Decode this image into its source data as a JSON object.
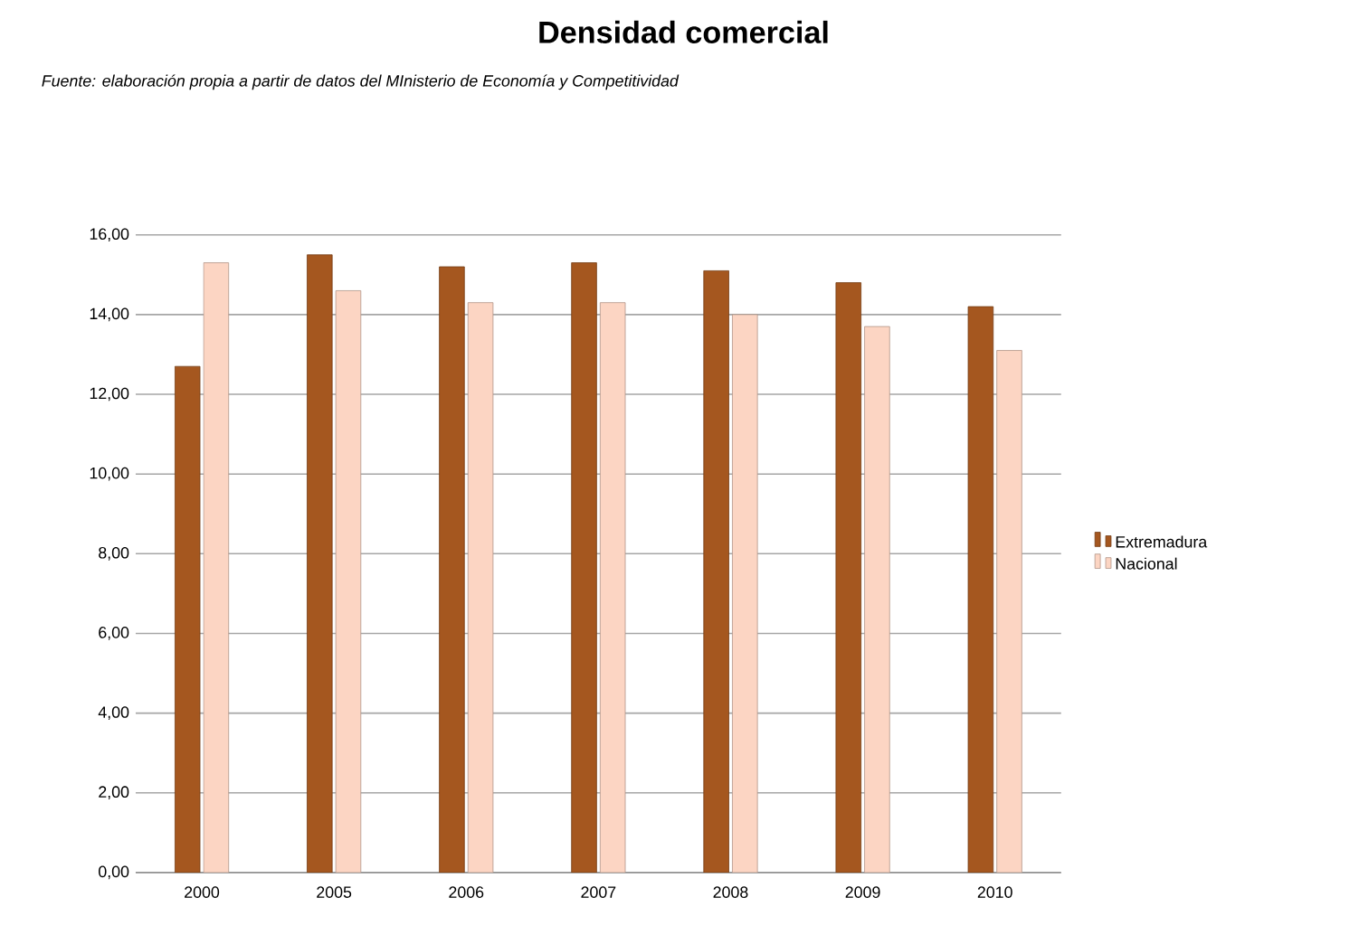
{
  "chart_data": {
    "type": "bar",
    "title": "Densidad comercial",
    "subtitle": "Fuente: elaboración propia a partir de datos del MInisterio de Economía y Competitividad",
    "categories": [
      "2000",
      "2005",
      "2006",
      "2007",
      "2008",
      "2009",
      "2010"
    ],
    "series": [
      {
        "name": "Extremadura",
        "color": "#a5571f",
        "values": [
          12.7,
          15.5,
          15.2,
          15.3,
          15.1,
          14.8,
          14.2
        ]
      },
      {
        "name": "Nacional",
        "color": "#fcd5c3",
        "values": [
          15.3,
          14.6,
          14.3,
          14.3,
          14.0,
          13.7,
          13.1
        ]
      }
    ],
    "ylim": [
      0,
      16
    ],
    "yticks": [
      {
        "value": 0,
        "label": "0,00"
      },
      {
        "value": 2,
        "label": "2,00"
      },
      {
        "value": 4,
        "label": "4,00"
      },
      {
        "value": 6,
        "label": "6,00"
      },
      {
        "value": 8,
        "label": "8,00"
      },
      {
        "value": 10,
        "label": "10,00"
      },
      {
        "value": 12,
        "label": "12,00"
      },
      {
        "value": 14,
        "label": "14,00"
      },
      {
        "value": 16,
        "label": "16,00"
      }
    ],
    "grid": "y",
    "legend": "right"
  }
}
